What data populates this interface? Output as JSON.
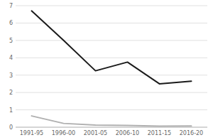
{
  "chart_data": {
    "type": "line",
    "categories": [
      "1991-95",
      "1996-00",
      "2001-05",
      "2006-10",
      "2011-15",
      "2016-20"
    ],
    "series": [
      {
        "color": "#1a1a1a",
        "values": [
          6.7,
          5.0,
          3.25,
          3.75,
          2.5,
          2.65
        ]
      },
      {
        "color": "#b0b0b0",
        "values": [
          0.65,
          0.22,
          0.12,
          0.1,
          0.06,
          0.07
        ]
      }
    ],
    "ylim": [
      0,
      7
    ],
    "yticks": [
      0,
      1,
      2,
      3,
      4,
      5,
      6,
      7
    ],
    "grid": true
  }
}
